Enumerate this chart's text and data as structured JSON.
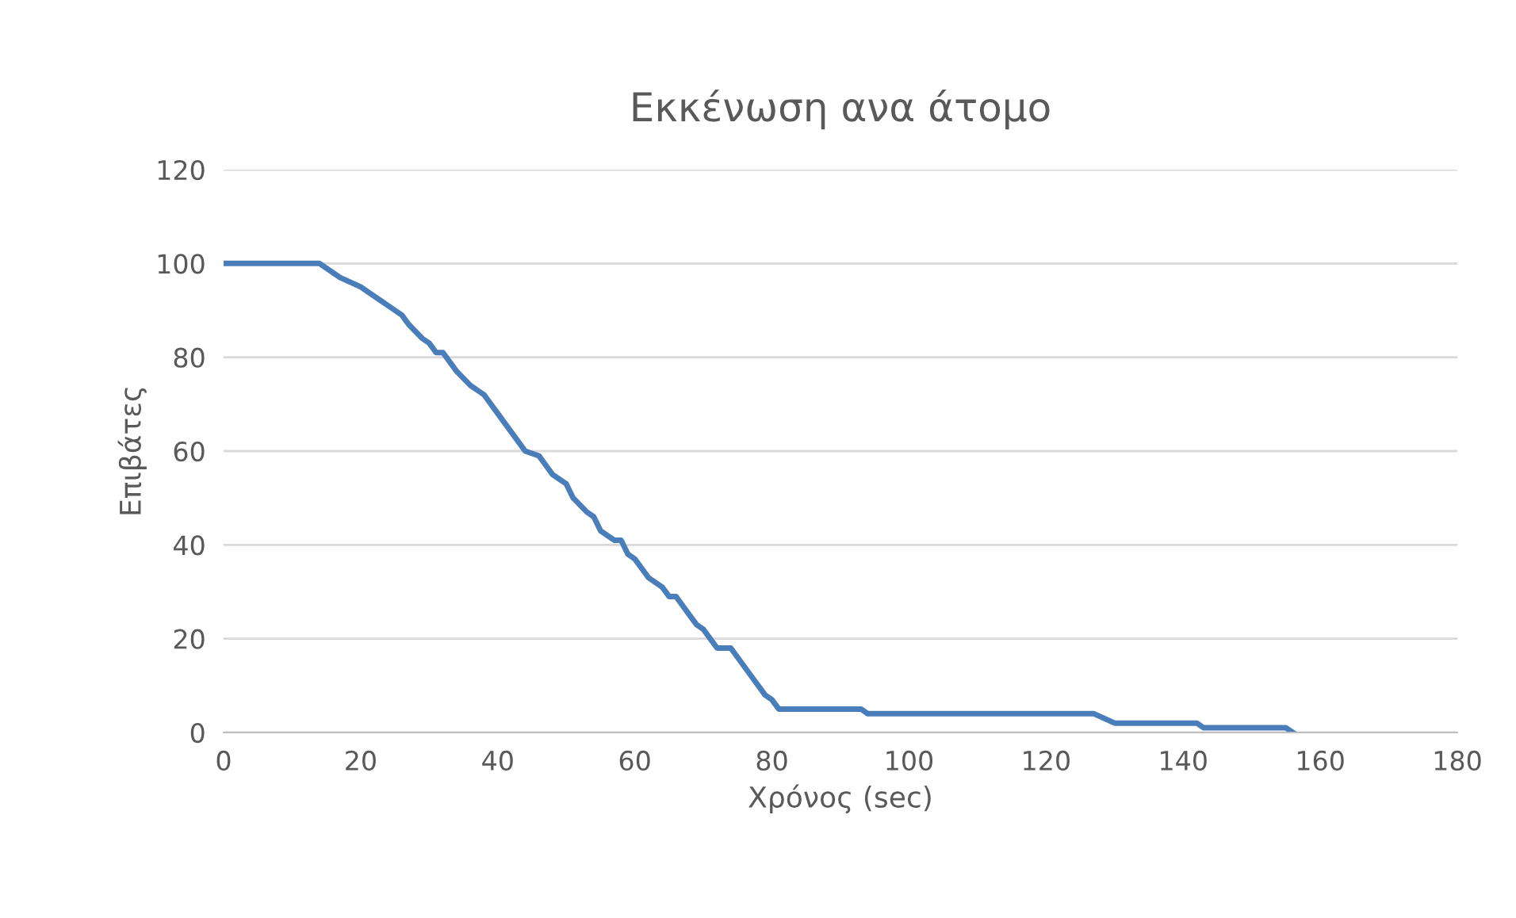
{
  "chart_data": {
    "type": "line",
    "title": "Εκκένωση ανα άτομο",
    "xlabel": "Χρόνος (sec)",
    "ylabel": "Επιβάτες",
    "xlim": [
      0,
      180
    ],
    "xticks": [
      0,
      20,
      40,
      60,
      80,
      100,
      120,
      140,
      160,
      180
    ],
    "ylim": [
      0,
      120
    ],
    "yticks": [
      0,
      20,
      40,
      60,
      80,
      100,
      120
    ],
    "grid": "y",
    "line_style": "solid",
    "series": [
      {
        "color": "#4a7ebb",
        "x": [
          0,
          14,
          17,
          20,
          21,
          23,
          25,
          26,
          27,
          29,
          30,
          31,
          32,
          34,
          36,
          38,
          40,
          43,
          44,
          46,
          47,
          48,
          50,
          51,
          53,
          54,
          55,
          57,
          58,
          59,
          60,
          62,
          64,
          65,
          66,
          68,
          69,
          70,
          72,
          74,
          77,
          79,
          80,
          81,
          93,
          94,
          127,
          130,
          142,
          143,
          155,
          156
        ],
        "values": [
          100,
          100,
          97,
          95,
          94,
          92,
          90,
          89,
          87,
          84,
          83,
          81,
          81,
          77,
          74,
          72,
          68,
          62,
          60,
          59,
          57,
          55,
          53,
          50,
          47,
          46,
          43,
          41,
          41,
          38,
          37,
          33,
          31,
          29,
          29,
          25,
          23,
          22,
          18,
          18,
          12,
          8,
          7,
          5,
          5,
          4,
          4,
          2,
          2,
          1,
          1,
          0
        ]
      }
    ]
  }
}
